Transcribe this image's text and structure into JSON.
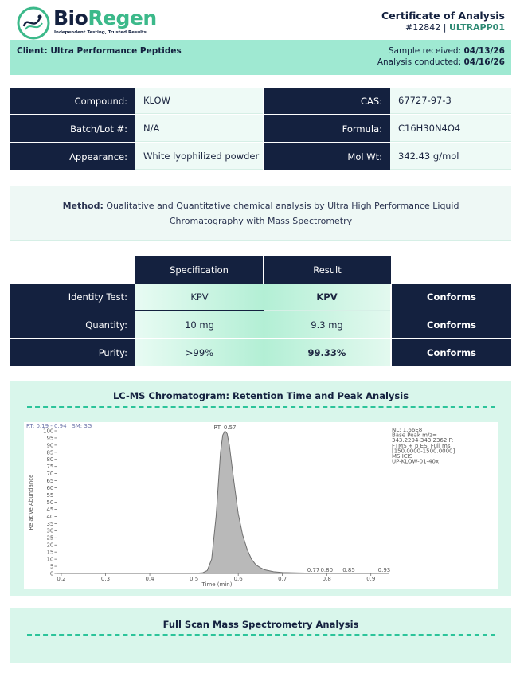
{
  "header": {
    "brand_bio": "Bio",
    "brand_regen": "Regen",
    "tagline": "Independent Testing, Trusted Results",
    "title": "Certificate of Analysis",
    "cert_number": "#12842",
    "separator": "|",
    "batch_code": "ULTRAPP01"
  },
  "client": {
    "label": "Client: Ultra Performance Peptides",
    "received_label": "Sample received:",
    "received_date": "04/13/26",
    "conducted_label": "Analysis conducted:",
    "conducted_date": "04/16/26"
  },
  "info": {
    "rows": [
      [
        "Compound:",
        "KLOW",
        "CAS:",
        "67727-97-3"
      ],
      [
        "Batch/Lot #:",
        "N/A",
        "Formula:",
        "C16H30N4O4"
      ],
      [
        "Appearance:",
        "White lyophilized powder",
        "Mol Wt:",
        "342.43 g/mol"
      ]
    ]
  },
  "method": {
    "label": "Method:",
    "text": "Qualitative and Quantitative chemical analysis by Ultra High Performance Liquid Chromatography with Mass Spectrometry"
  },
  "results": {
    "headers": [
      "Specification",
      "Result"
    ],
    "rows": [
      [
        "Identity Test:",
        "KPV",
        "KPV",
        "Conforms"
      ],
      [
        "Quantity:",
        "10 mg",
        "9.3 mg",
        "Conforms"
      ],
      [
        "Purity:",
        ">99%",
        "99.33%",
        "Conforms"
      ]
    ]
  },
  "chromatogram": {
    "title": "LC-MS Chromatogram: Retention Time and Peak Analysis",
    "type": "area",
    "range_label": "RT: 0.19 - 0.94   SM: 3G",
    "peak_label": "RT: 0.57",
    "info_lines": [
      "NL: 1.66E8",
      "Base Peak m/z=",
      "343.2294-343.2362 F:",
      "FTMS + p ESI Full ms",
      "[150.0000-1500.0000]",
      "MS ICIS",
      "UP-KLOW-01-40x"
    ],
    "xlabel": "Time (min)",
    "ylabel": "Relative Abundance",
    "xlim": [
      0.19,
      0.94
    ],
    "ylim": [
      0,
      100
    ],
    "xticks": [
      0.2,
      0.3,
      0.4,
      0.5,
      0.6,
      0.7,
      0.8,
      0.9
    ],
    "yticks": [
      0,
      5,
      10,
      15,
      20,
      25,
      30,
      35,
      40,
      45,
      50,
      55,
      60,
      65,
      70,
      75,
      80,
      85,
      90,
      95,
      100
    ],
    "x": [
      0.19,
      0.5,
      0.52,
      0.53,
      0.54,
      0.55,
      0.56,
      0.565,
      0.57,
      0.575,
      0.58,
      0.59,
      0.6,
      0.61,
      0.62,
      0.63,
      0.64,
      0.65,
      0.66,
      0.68,
      0.7,
      0.75,
      0.94
    ],
    "y": [
      0,
      0,
      0.5,
      2,
      10,
      40,
      85,
      97,
      100,
      98,
      90,
      65,
      42,
      27,
      17,
      10,
      6,
      4,
      2.5,
      1.2,
      0.6,
      0.3,
      0.2
    ],
    "color": "#b9b9b9",
    "minor_peaks": [
      0.77,
      {
        "value": 0.8,
        "label": "0.80"
      },
      0.85,
      0.93
    ]
  },
  "full_scan": {
    "title": "Full Scan Mass Spectrometry Analysis"
  }
}
